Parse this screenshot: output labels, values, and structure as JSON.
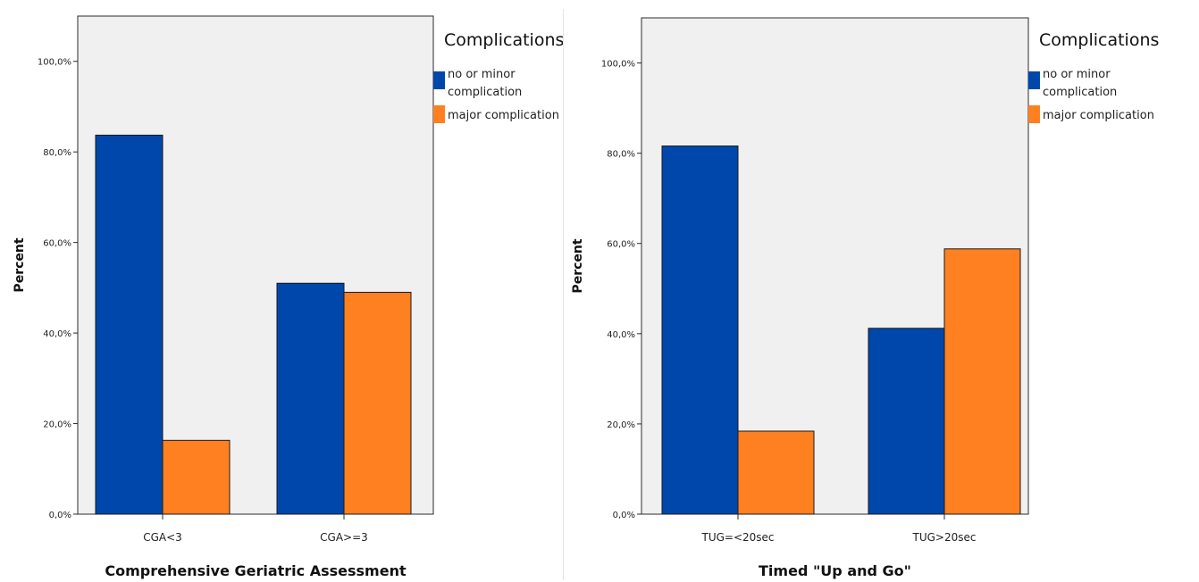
{
  "chart_data": [
    {
      "type": "bar",
      "categories": [
        "CGA<3",
        "CGA>=3"
      ],
      "series": [
        {
          "name": "no or minor complication",
          "values": [
            83.7,
            51.0
          ],
          "color": "#0047ab"
        },
        {
          "name": "major complication",
          "values": [
            16.3,
            49.0
          ],
          "color": "#ff8020"
        }
      ],
      "xlabel": "Comprehensive Geriatric Assessment",
      "ylabel": "Percent",
      "ylim": [
        0,
        110
      ],
      "yticks": [
        0,
        20,
        40,
        60,
        80,
        100
      ],
      "ytick_labels": [
        "0,0%",
        "20,0%",
        "40,0%",
        "60,0%",
        "80,0%",
        "100,0%"
      ],
      "legend_title": "Complications",
      "legend_items": [
        "no or minor",
        "complication",
        "major complication"
      ],
      "legend_position": "right",
      "grid": false
    },
    {
      "type": "bar",
      "categories": [
        "TUG=<20sec",
        "TUG>20sec"
      ],
      "series": [
        {
          "name": "no or minor complication",
          "values": [
            81.6,
            41.2
          ],
          "color": "#0047ab"
        },
        {
          "name": "major complication",
          "values": [
            18.4,
            58.8
          ],
          "color": "#ff8020"
        }
      ],
      "xlabel": "Timed \"Up and Go\"",
      "ylabel": "Percent",
      "ylim": [
        0,
        110
      ],
      "yticks": [
        0,
        20,
        40,
        60,
        80,
        100
      ],
      "ytick_labels": [
        "0,0%",
        "20,0%",
        "40,0%",
        "60,0%",
        "80,0%",
        "100,0%"
      ],
      "legend_title": "Complications",
      "legend_items": [
        "no or minor",
        "complication",
        "major complication"
      ],
      "legend_position": "right",
      "grid": false
    }
  ]
}
